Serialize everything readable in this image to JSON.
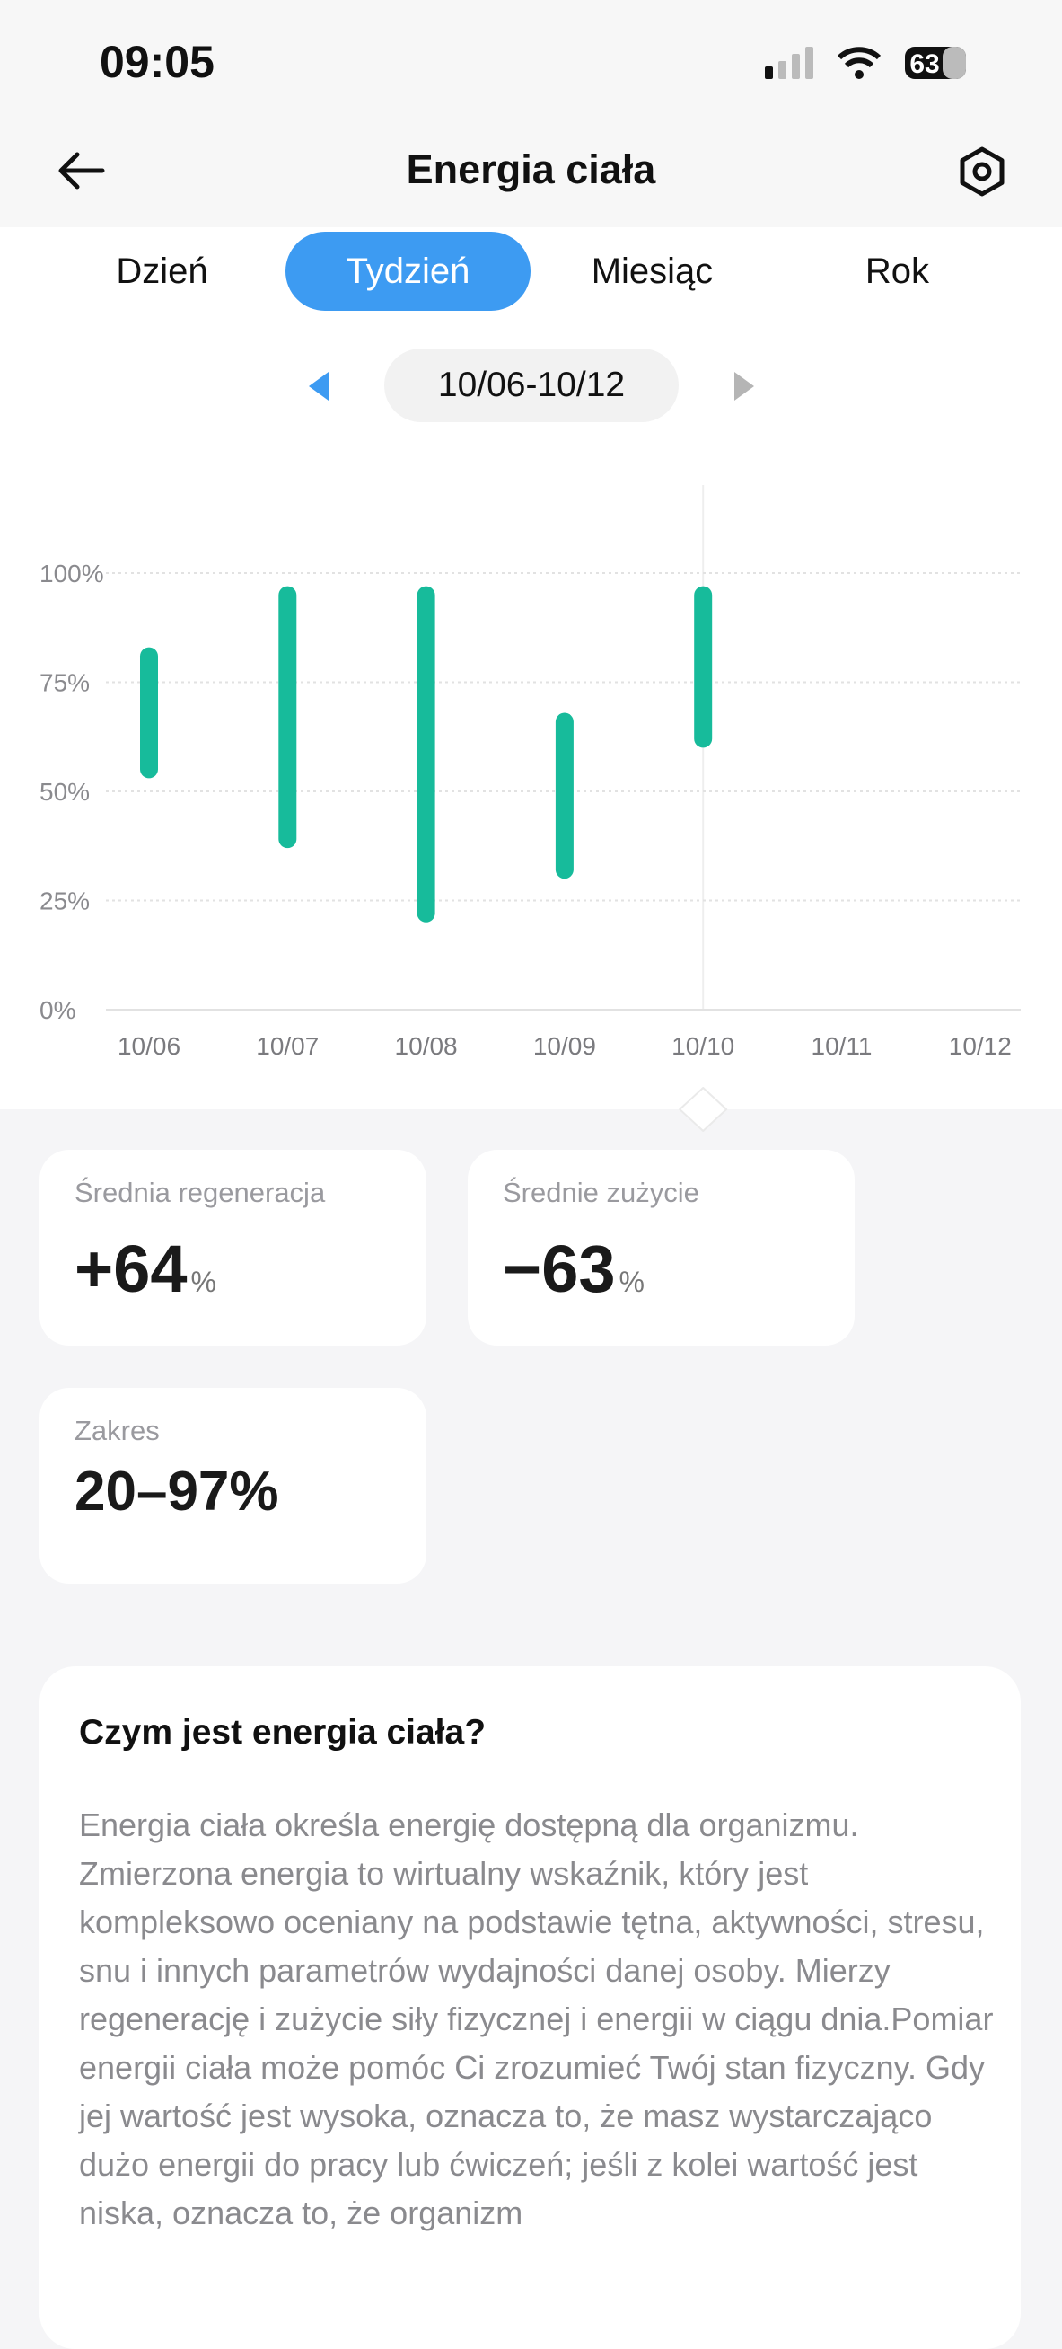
{
  "status_bar": {
    "time": "09:05",
    "battery": "63"
  },
  "header": {
    "title": "Energia ciała"
  },
  "tabs": [
    "Dzień",
    "Tydzień",
    "Miesiąc",
    "Rok"
  ],
  "active_tab": 1,
  "date_range": "10/06-10/12",
  "chart_data": {
    "type": "range_bar",
    "color": "#17bb9b",
    "categories": [
      "10/06",
      "10/07",
      "10/08",
      "10/09",
      "10/10",
      "10/11",
      "10/12"
    ],
    "low": [
      53,
      37,
      20,
      30,
      60,
      null,
      null
    ],
    "high": [
      83,
      97,
      97,
      68,
      97,
      null,
      null
    ],
    "ylim": [
      0,
      100
    ],
    "yticks": [
      {
        "value": 0,
        "label": "0%"
      },
      {
        "value": 25,
        "label": "25%"
      },
      {
        "value": 50,
        "label": "50%"
      },
      {
        "value": 75,
        "label": "75%"
      },
      {
        "value": 100,
        "label": "100%"
      }
    ],
    "grid": true,
    "selected": 4
  },
  "stats": [
    {
      "label": "Średnia regeneracja",
      "value": "+64",
      "unit": "%"
    },
    {
      "label": "Średnie zużycie",
      "value": "−63",
      "unit": "%"
    },
    {
      "label": "Zakres",
      "value": "20–97%"
    }
  ],
  "info": {
    "title": "Czym jest energia ciała?",
    "body": "Energia ciała określa energię dostępną dla organizmu. Zmierzona energia to wirtualny wskaźnik, który jest kompleksowo oceniany na podstawie tętna, aktywności, stresu, snu i innych parametrów wydajności danej osoby. Mierzy regenerację i zużycie siły fizycznej i energii w ciągu dnia.Pomiar energii ciała może pomóc Ci zrozumieć Twój stan fizyczny. Gdy jej wartość jest wysoka, oznacza to, że masz wystarczająco dużo energii do pracy lub ćwiczeń; jeśli z kolei wartość jest niska, oznacza to, że organizm"
  }
}
